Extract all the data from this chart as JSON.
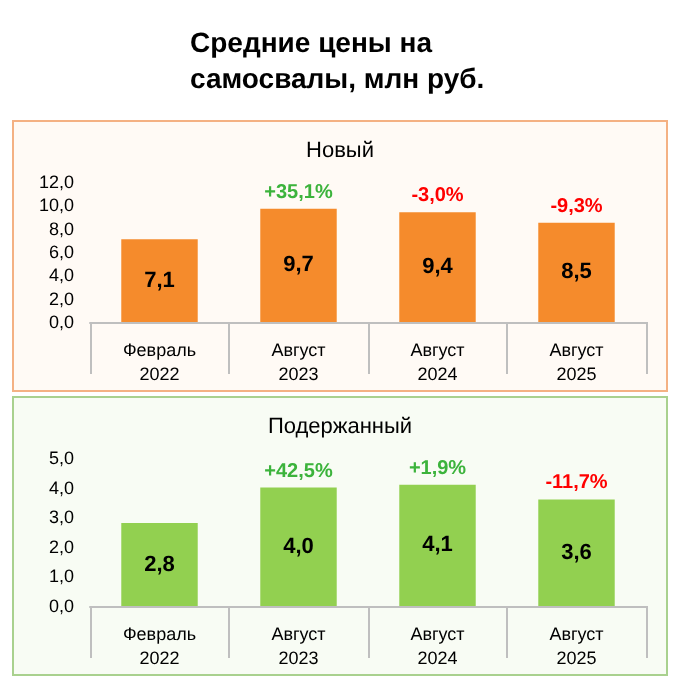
{
  "chart_data": [
    {
      "type": "bar",
      "title": "Средние цены на самосвалы, млн руб.",
      "subtitle": "Новый",
      "categories": [
        "Февраль\n2022",
        "Август\n2023",
        "Август\n2024",
        "Август\n2025"
      ],
      "values": [
        7.1,
        9.7,
        9.4,
        8.5
      ],
      "value_labels": [
        "7,1",
        "9,7",
        "9,4",
        "8,5"
      ],
      "color": "#f58b2c",
      "ylim": [
        0,
        12
      ],
      "yticks": [
        {
          "value": 0,
          "label": "0,0"
        },
        {
          "value": 2,
          "label": "2,0"
        },
        {
          "value": 4,
          "label": "4,0"
        },
        {
          "value": 6,
          "label": "6,0"
        },
        {
          "value": 8,
          "label": "8,0"
        },
        {
          "value": 10,
          "label": "10,0"
        },
        {
          "value": 12,
          "label": "12,0"
        }
      ],
      "annotations": [
        {
          "text": "+35,1%",
          "x": "Август\n2023",
          "y": 9.7
        },
        {
          "text": "-3,0%",
          "x": "Август\n2024",
          "y": 9.4
        },
        {
          "text": "-9,3%",
          "x": "Август\n2025",
          "y": 8.5
        }
      ],
      "grid": false
    },
    {
      "type": "bar",
      "title": "Подержанный",
      "categories": [
        "Февраль\n2022",
        "Август\n2023",
        "Август\n2024",
        "Август\n2025"
      ],
      "values": [
        2.8,
        4.0,
        4.1,
        3.6
      ],
      "value_labels": [
        "2,8",
        "4,0",
        "4,1",
        "3,6"
      ],
      "color": "#92d050",
      "ylim": [
        0,
        5
      ],
      "yticks": [
        {
          "value": 0,
          "label": "0,0"
        },
        {
          "value": 1,
          "label": "1,0"
        },
        {
          "value": 2,
          "label": "2,0"
        },
        {
          "value": 3,
          "label": "3,0"
        },
        {
          "value": 4,
          "label": "4,0"
        },
        {
          "value": 5,
          "label": "5,0"
        }
      ],
      "annotations": [
        {
          "text": "+42,5%",
          "x": "Август\n2023",
          "y": 4.0
        },
        {
          "text": "+1,9%",
          "x": "Август\n2024",
          "y": 4.1
        },
        {
          "text": "-11,7%",
          "x": "Август\n2025",
          "y": 3.6
        }
      ],
      "grid": false
    }
  ]
}
